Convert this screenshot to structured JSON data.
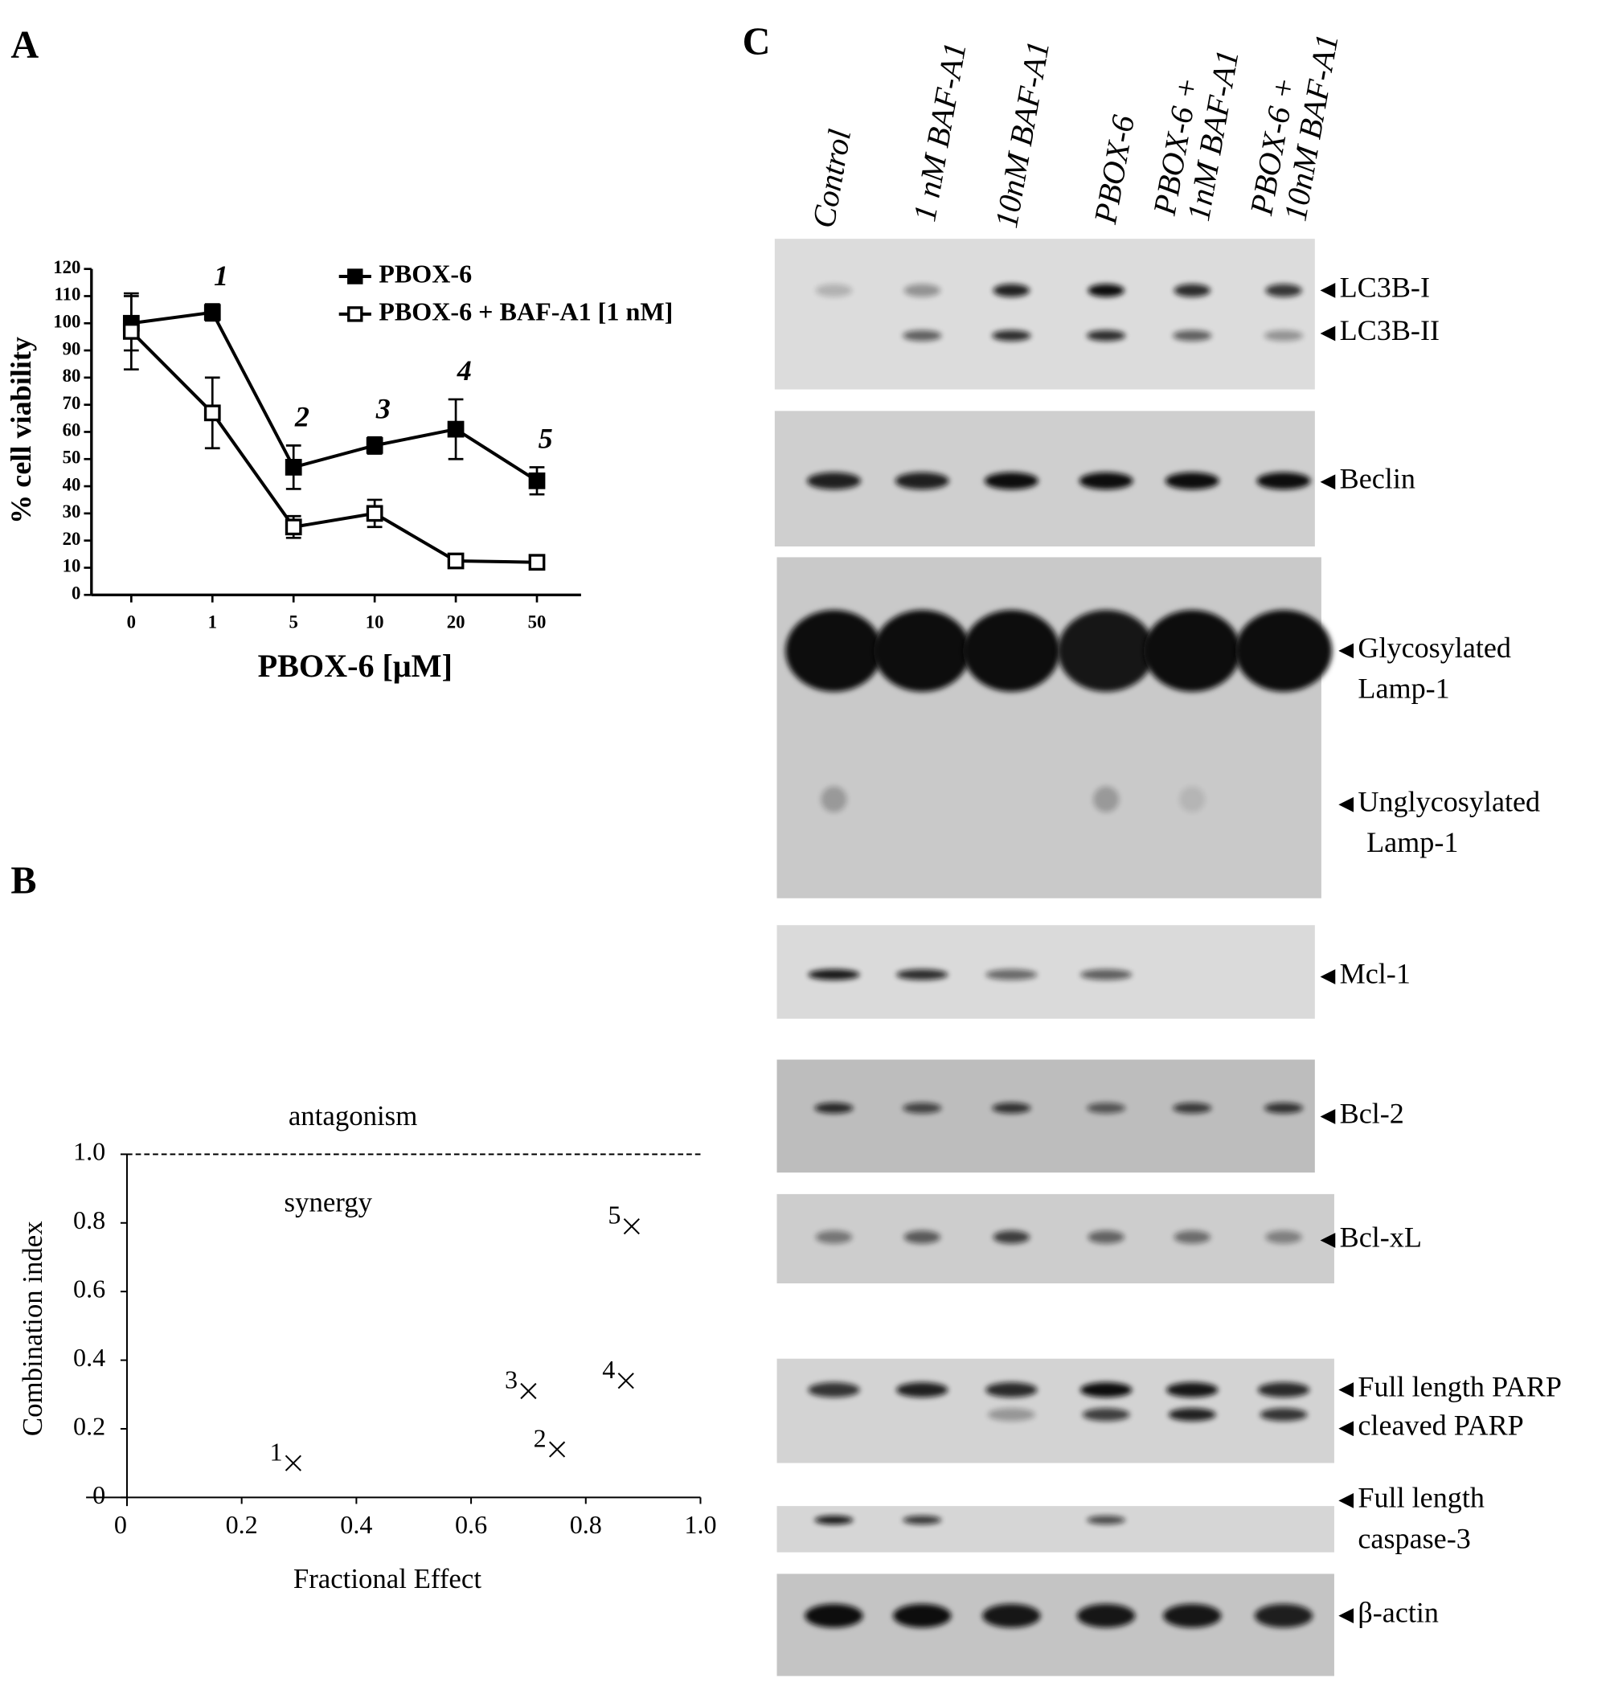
{
  "chart_data": [
    {
      "type": "line",
      "panel_label": "A",
      "x_label": "PBOX-6 [μM]",
      "y_label": "% cell viability",
      "categories": [
        "0",
        "1",
        "5",
        "10",
        "20",
        "50"
      ],
      "series": [
        {
          "name": "PBOX-6",
          "color": "#000000",
          "marker": "filled-square",
          "values": [
            100,
            104,
            47,
            55,
            61,
            42
          ],
          "errors": [
            10,
            3,
            8,
            3,
            11,
            5
          ],
          "point_labels": [
            null,
            "1",
            "2",
            "3",
            "4",
            "5"
          ]
        },
        {
          "name": "PBOX-6 + BAF-A1 [1 nM]",
          "color": "#000000",
          "marker": "open-square",
          "values": [
            97,
            67,
            25,
            30,
            12.5,
            12
          ],
          "errors": [
            14,
            13,
            4,
            5,
            1,
            1
          ]
        }
      ],
      "ylim": [
        0,
        120
      ],
      "yticks": [
        0,
        10,
        20,
        30,
        40,
        50,
        60,
        70,
        80,
        90,
        100,
        110,
        120
      ]
    },
    {
      "type": "scatter",
      "panel_label": "B",
      "x_label": "Fractional Effect",
      "y_label": "Combination index",
      "x": [
        0.29,
        0.75,
        0.7,
        0.87,
        0.88
      ],
      "values": [
        0.1,
        0.14,
        0.31,
        0.34,
        0.79
      ],
      "point_labels": [
        "1",
        "2",
        "3",
        "4",
        "5"
      ],
      "color": "#000000",
      "xlim": [
        0,
        1
      ],
      "ylim": [
        0,
        1
      ],
      "xticks": [
        0,
        0.2,
        0.4,
        0.6,
        0.8,
        {
          "value": 1,
          "label": "1.0"
        }
      ],
      "yticks": [
        0,
        0.2,
        0.4,
        0.6,
        0.8,
        {
          "value": 1,
          "label": "1.0"
        }
      ],
      "reference_line": 1,
      "annotations": [
        "antagonism",
        "synergy"
      ]
    }
  ],
  "blot": {
    "panel_label": "C",
    "lanes": [
      [
        "Control"
      ],
      [
        "1 nM BAF-A1"
      ],
      [
        "10nM BAF-A1"
      ],
      [
        "PBOX-6"
      ],
      [
        "PBOX-6 +",
        "1nM BAF-A1"
      ],
      [
        "PBOX-6 +",
        "10nM BAF-A1"
      ]
    ],
    "bands": [
      [
        "LC3B-I"
      ],
      [
        "LC3B-II"
      ],
      [
        "Beclin"
      ],
      [
        "Glycosylated",
        "Lamp-1"
      ],
      [
        "Unglycosylated",
        "Lamp-1"
      ],
      [
        "Mcl-1"
      ],
      [
        "Bcl-2"
      ],
      [
        "Bcl-xL"
      ],
      [
        "Full length PARP"
      ],
      [
        "cleaved PARP"
      ],
      [
        "Full length",
        "caspase-3"
      ],
      [
        "β-actin"
      ]
    ]
  }
}
